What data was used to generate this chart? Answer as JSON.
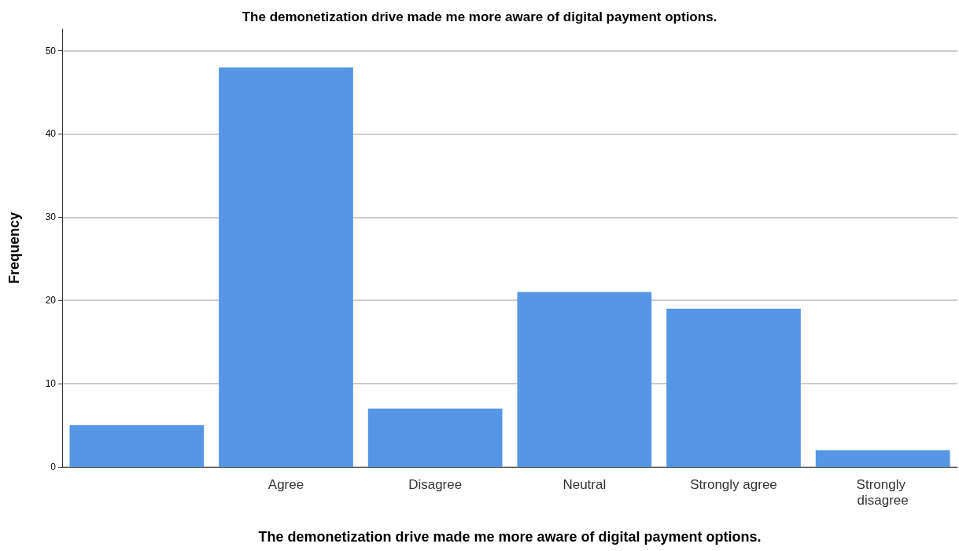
{
  "chart_data": {
    "type": "bar",
    "title": "The demonetization drive made me more aware of digital payment options.",
    "xlabel": "The demonetization drive made me more aware of digital payment options.",
    "ylabel": "Frequency",
    "categories": [
      null,
      "Agree",
      "Disagree",
      "Neutral",
      "Strongly agree",
      "Strongly disagree"
    ],
    "values": [
      5,
      48,
      7,
      21,
      19,
      2
    ],
    "color": "#5596e5",
    "ylim": [
      0,
      52.6
    ],
    "yticks": [
      0,
      10,
      20,
      30,
      40,
      50
    ],
    "grid": "y"
  }
}
